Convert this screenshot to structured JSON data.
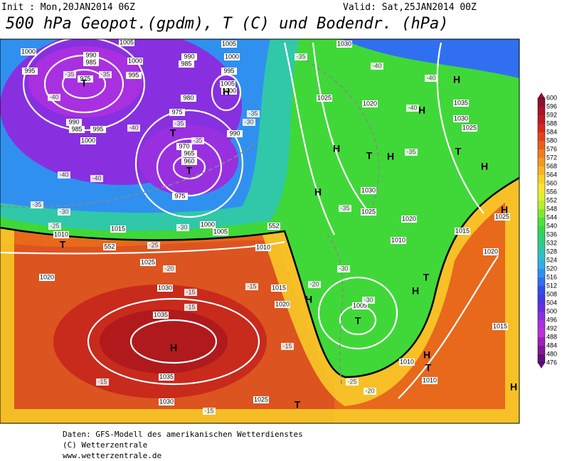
{
  "header": {
    "init": "Init : Mon,20JAN2014 06Z",
    "valid": "Valid: Sat,25JAN2014 00Z",
    "title": "500 hPa Geopot.(gpdm), T (C) und Bodendr. (hPa)"
  },
  "footer": [
    "Daten: GFS-Modell des amerikanischen Wetterdienstes",
    "(C) Wetterzentrale",
    "www.wetterzentrale.de"
  ],
  "colorbar": {
    "levels": [
      "600",
      "596",
      "592",
      "588",
      "584",
      "580",
      "576",
      "572",
      "568",
      "564",
      "560",
      "556",
      "552",
      "548",
      "544",
      "540",
      "536",
      "532",
      "528",
      "524",
      "520",
      "516",
      "512",
      "508",
      "504",
      "500",
      "496",
      "492",
      "488",
      "484",
      "480",
      "476"
    ],
    "colors": [
      "#8c1233",
      "#a8152a",
      "#c21a22",
      "#d8281c",
      "#e04418",
      "#e8601a",
      "#ee7e1c",
      "#f29a20",
      "#f6b624",
      "#f8d028",
      "#f8e830",
      "#e0f030",
      "#b8ee30",
      "#80e830",
      "#50e038",
      "#30d850",
      "#30d078",
      "#30c8a0",
      "#30c0c8",
      "#30b0e8",
      "#3090f0",
      "#3070f0",
      "#3050e8",
      "#4838e0",
      "#6830e0",
      "#8830e0",
      "#a830e0",
      "#c030d8",
      "#a020b8",
      "#801898",
      "#601078"
    ]
  },
  "map": {
    "isobar_labels": [
      "1000",
      "995",
      "990",
      "985",
      "975",
      "1005",
      "1000",
      "995",
      "990",
      "985",
      "1000",
      "995",
      "1005",
      "1000",
      "1005",
      "1030",
      "1025",
      "1020",
      "1035",
      "1030",
      "1025",
      "980",
      "975",
      "970",
      "965",
      "960",
      "990",
      "985",
      "995",
      "1000",
      "990",
      "1030",
      "1025",
      "1020",
      "1015",
      "1020",
      "1025",
      "1010",
      "1015",
      "1005",
      "1000",
      "975",
      "1010",
      "1015",
      "1020",
      "1025",
      "1020",
      "1030",
      "1035",
      "1035",
      "1030",
      "1025",
      "1005",
      "1010",
      "1015",
      "1010",
      "1010"
    ],
    "temperature_labels": [
      "-35",
      "-40",
      "-40",
      "-40",
      "-35",
      "-35",
      "-30",
      "-30",
      "-25",
      "-20",
      "-35",
      "-35",
      "-40",
      "-40",
      "-35",
      "-35",
      "-30",
      "-35",
      "-40",
      "-40",
      "-35",
      "-30",
      "-25",
      "-25",
      "-20",
      "-15",
      "-15",
      "-15",
      "-15",
      "-15",
      "-15",
      "-30",
      "-20"
    ],
    "height_labels": [
      "552",
      "552"
    ],
    "centers": [
      "T",
      "T",
      "T",
      "H",
      "T",
      "H",
      "H",
      "T",
      "H",
      "H",
      "T",
      "H",
      "H",
      "H",
      "H",
      "H",
      "T",
      "H",
      "T",
      "H",
      "T",
      "T",
      "H"
    ]
  }
}
